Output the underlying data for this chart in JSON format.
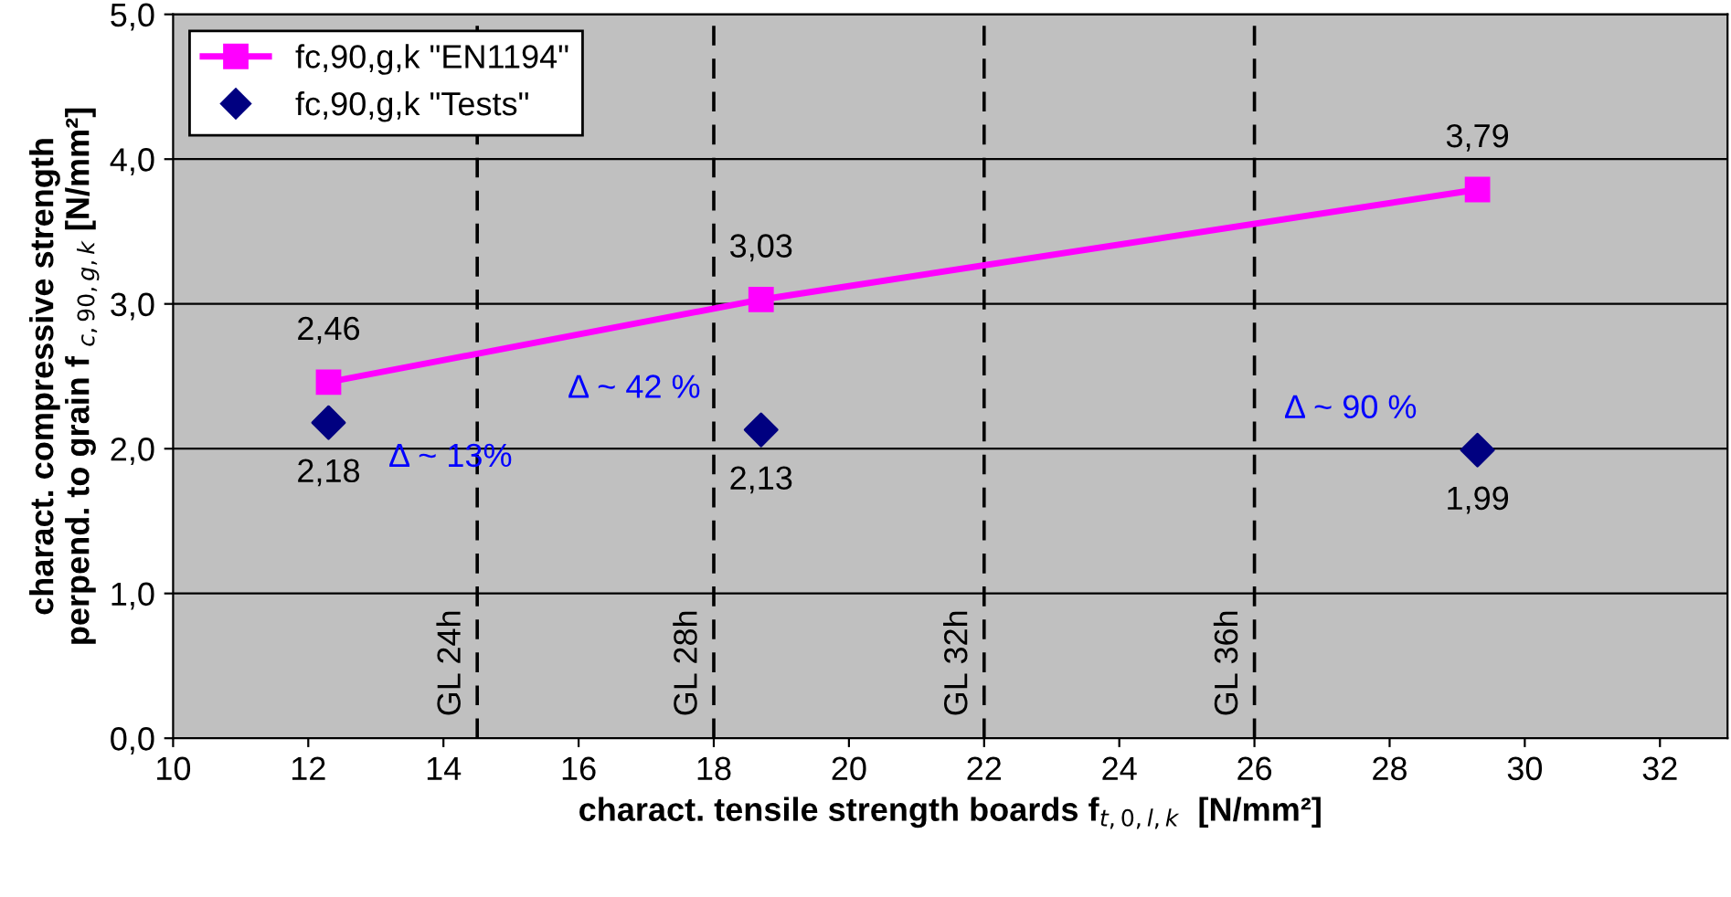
{
  "chart_data": {
    "type": "line",
    "xlabel": "charact. tensile strength boards f$_{t,0,l,k}$  [N/mm²]",
    "ylabel": "charact. compressive strength\nperpend. to grain f $_{c,90,g,k}$ [N/mm²]",
    "series": [
      {
        "name": "fc,90,g,k \"EN1194\"",
        "color": "#ff00ff",
        "marker": "square",
        "line_style": "solid",
        "x": [
          12.3,
          18.7,
          29.3
        ],
        "values": [
          2.46,
          3.03,
          3.79
        ],
        "value_labels": [
          "2,46",
          "3,03",
          "3,79"
        ]
      },
      {
        "name": "fc,90,g,k \"Tests\"",
        "type": "scatter",
        "color": "#000080",
        "marker": "diamond",
        "x": [
          12.3,
          18.7,
          29.3
        ],
        "values": [
          2.18,
          2.13,
          1.99
        ],
        "value_labels": [
          "2,18",
          "2,13",
          "1,99"
        ]
      }
    ],
    "xlim": [
      10,
      33
    ],
    "xticks": [
      10,
      12,
      14,
      16,
      18,
      20,
      22,
      24,
      26,
      28,
      30,
      32
    ],
    "ylim": [
      0,
      5
    ],
    "yticks": [
      {
        "value": 0,
        "label": "0,0"
      },
      {
        "value": 1,
        "label": "1,0"
      },
      {
        "value": 2,
        "label": "2,0"
      },
      {
        "value": 3,
        "label": "3,0"
      },
      {
        "value": 4,
        "label": "4,0"
      },
      {
        "value": 5,
        "label": "5,0"
      }
    ],
    "ref_lines": [
      {
        "axis": "x",
        "value": 14.5,
        "label": "GL 24h",
        "color": "#000000",
        "line_style": "dashed"
      },
      {
        "axis": "x",
        "value": 18,
        "label": "GL 28h",
        "color": "#000000",
        "line_style": "dashed"
      },
      {
        "axis": "x",
        "value": 22,
        "label": "GL 32h",
        "color": "#000000",
        "line_style": "dashed"
      },
      {
        "axis": "x",
        "value": 26,
        "label": "GL 36h",
        "color": "#000000",
        "line_style": "dashed"
      }
    ],
    "annotations": [
      "Δ ~ 13%",
      "Δ ~ 42 %",
      "Δ ~ 90 %"
    ],
    "grid": "y",
    "legend": "top left"
  }
}
